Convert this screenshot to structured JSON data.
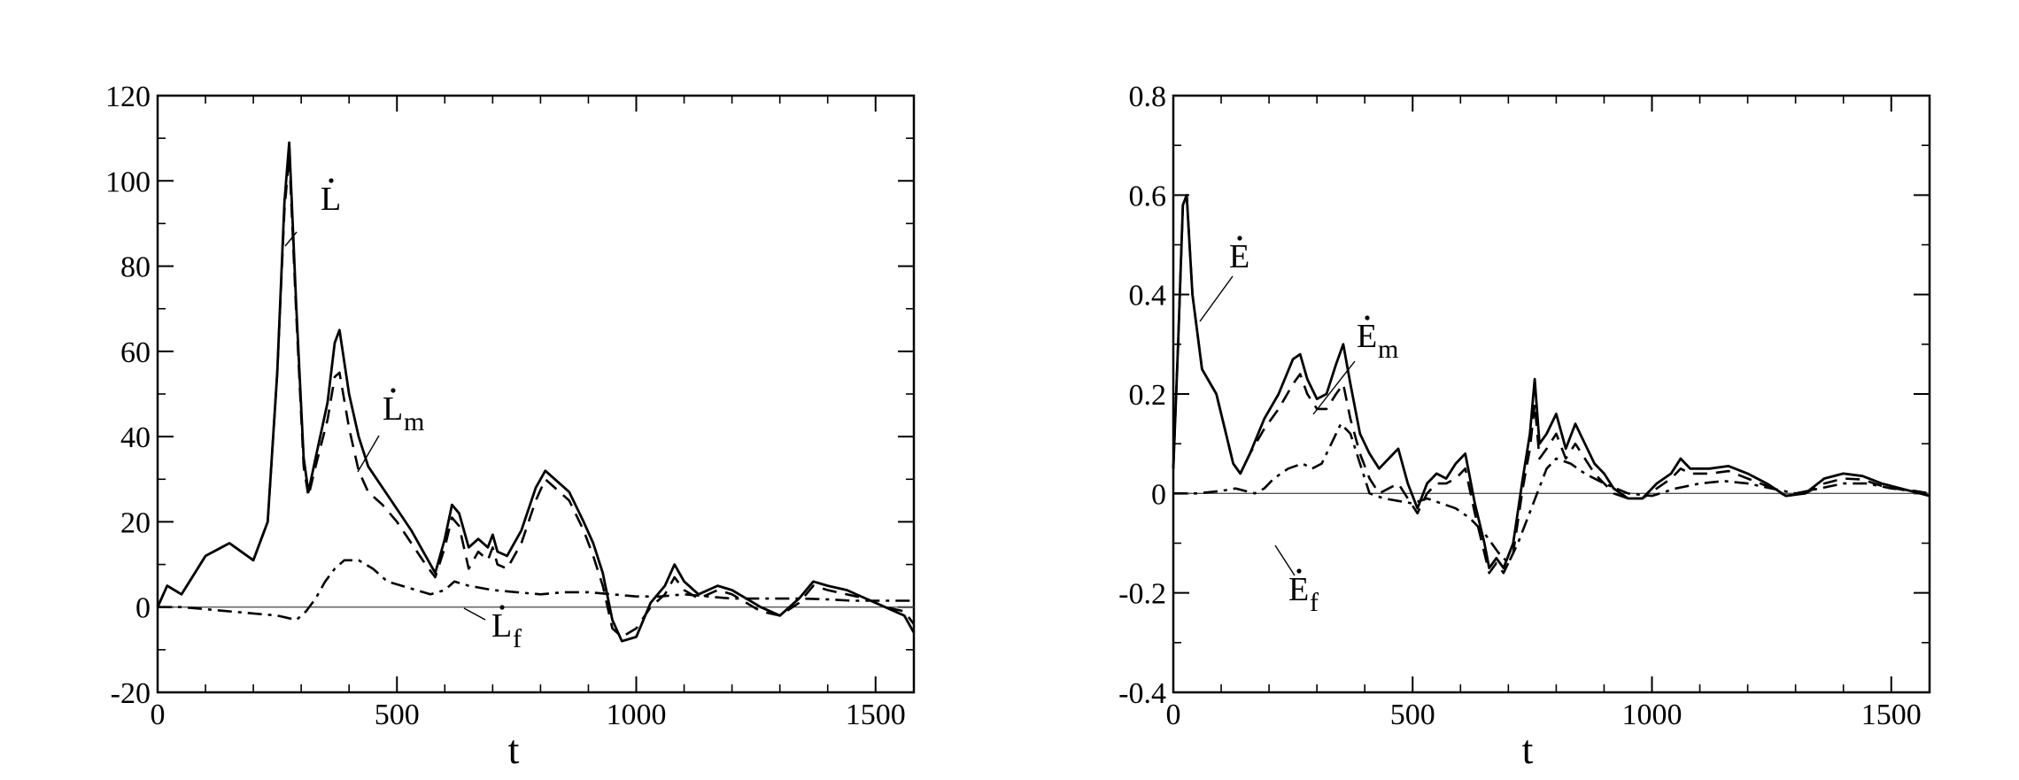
{
  "chart_data": [
    {
      "type": "line",
      "xlabel": "t",
      "ylabel": "",
      "xlim": [
        0,
        1580
      ],
      "ylim": [
        -20,
        120
      ],
      "xticks": [
        0,
        500,
        1000,
        1500
      ],
      "yticks": [
        -20,
        0,
        20,
        40,
        60,
        80,
        100,
        120
      ],
      "xtick_labels": [
        "0",
        "500",
        "1000",
        "1500"
      ],
      "ytick_labels": [
        "-20",
        "0",
        "20",
        "40",
        "60",
        "80",
        "100",
        "120"
      ],
      "grid": false,
      "series": [
        {
          "name": "L̇",
          "style": "solid",
          "x": [
            0,
            20,
            50,
            100,
            150,
            200,
            230,
            250,
            265,
            275,
            290,
            305,
            315,
            330,
            355,
            370,
            380,
            400,
            420,
            440,
            470,
            500,
            530,
            560,
            580,
            600,
            615,
            630,
            650,
            670,
            690,
            700,
            710,
            730,
            760,
            790,
            810,
            830,
            860,
            890,
            910,
            930,
            950,
            970,
            1000,
            1030,
            1060,
            1080,
            1100,
            1130,
            1170,
            1200,
            1230,
            1260,
            1300,
            1340,
            1370,
            1400,
            1440,
            1480,
            1520,
            1560,
            1580
          ],
          "y": [
            0,
            5,
            3,
            12,
            15,
            11,
            20,
            55,
            95,
            109,
            70,
            35,
            27,
            35,
            48,
            62,
            65,
            50,
            40,
            33,
            28,
            23,
            18,
            12,
            8,
            16,
            24,
            22,
            14,
            16,
            14,
            17,
            13,
            12,
            18,
            28,
            32,
            30,
            27,
            20,
            15,
            8,
            -3,
            -8,
            -7,
            1,
            5,
            10,
            6,
            3,
            5,
            4,
            2,
            0,
            -2,
            2,
            6,
            5,
            4,
            2,
            0,
            -2,
            -6
          ]
        },
        {
          "name": "L̇m",
          "style": "dashed",
          "x": [
            0,
            20,
            50,
            100,
            150,
            200,
            230,
            250,
            265,
            275,
            290,
            305,
            315,
            330,
            355,
            370,
            380,
            400,
            420,
            440,
            470,
            500,
            530,
            560,
            580,
            600,
            615,
            630,
            650,
            670,
            690,
            700,
            710,
            730,
            760,
            790,
            810,
            830,
            860,
            890,
            910,
            930,
            950,
            970,
            1000,
            1030,
            1060,
            1080,
            1100,
            1130,
            1170,
            1200,
            1230,
            1260,
            1300,
            1340,
            1370,
            1400,
            1440,
            1480,
            1520,
            1560,
            1580
          ],
          "y": [
            0,
            5,
            3,
            12,
            15,
            11,
            20,
            55,
            93,
            106,
            68,
            33,
            26,
            33,
            44,
            54,
            55,
            42,
            32,
            27,
            24,
            20,
            15,
            10,
            7,
            14,
            21,
            19,
            9,
            13,
            11,
            14,
            10,
            9,
            15,
            25,
            30,
            28,
            25,
            18,
            12,
            5,
            -5,
            -7,
            -5,
            0,
            3,
            7,
            4,
            2,
            4,
            3,
            1,
            -1,
            -2,
            1,
            5,
            4,
            3,
            2,
            0,
            -1,
            -4
          ]
        },
        {
          "name": "L̇f",
          "style": "dashdot",
          "x": [
            0,
            50,
            100,
            150,
            200,
            250,
            290,
            310,
            330,
            350,
            370,
            390,
            420,
            450,
            480,
            510,
            540,
            570,
            600,
            620,
            650,
            700,
            750,
            800,
            850,
            900,
            950,
            1000,
            1050,
            1100,
            1150,
            1200,
            1250,
            1300,
            1350,
            1400,
            1450,
            1500,
            1550,
            1580
          ],
          "y": [
            0,
            0,
            -0.5,
            -1,
            -1.5,
            -2,
            -3,
            -1,
            2,
            6,
            9,
            11,
            11,
            9,
            6,
            5,
            4,
            3,
            4,
            6,
            5,
            4,
            3.5,
            3,
            3.5,
            3.5,
            3,
            2.5,
            2.5,
            3,
            2.5,
            2,
            2,
            2,
            2,
            1.8,
            1.5,
            1.5,
            1.5,
            1.5
          ]
        }
      ],
      "annotations": [
        {
          "text": "L",
          "sub": "",
          "series": "L̇"
        },
        {
          "text": "L",
          "sub": "m",
          "series": "L̇m"
        },
        {
          "text": "L",
          "sub": "f",
          "series": "L̇f"
        }
      ],
      "reference_line": 0
    },
    {
      "type": "line",
      "xlabel": "t",
      "ylabel": "",
      "xlim": [
        0,
        1580
      ],
      "ylim": [
        -0.4,
        0.8
      ],
      "xticks": [
        0,
        500,
        1000,
        1500
      ],
      "yticks": [
        -0.4,
        -0.2,
        0,
        0.2,
        0.4,
        0.6,
        0.8
      ],
      "xtick_labels": [
        "0",
        "500",
        "1000",
        "1500"
      ],
      "ytick_labels": [
        "-0.4",
        "-0.2",
        "0",
        "0.2",
        "0.4",
        "0.6",
        "0.8"
      ],
      "grid": false,
      "series": [
        {
          "name": "Ė",
          "style": "solid",
          "x": [
            0,
            10,
            20,
            28,
            40,
            60,
            90,
            110,
            125,
            140,
            160,
            190,
            220,
            250,
            265,
            280,
            300,
            320,
            340,
            355,
            370,
            390,
            410,
            430,
            450,
            470,
            490,
            510,
            530,
            550,
            570,
            590,
            610,
            630,
            650,
            660,
            675,
            690,
            710,
            730,
            745,
            755,
            765,
            780,
            800,
            820,
            840,
            860,
            880,
            900,
            920,
            950,
            980,
            1010,
            1040,
            1060,
            1080,
            1120,
            1160,
            1200,
            1240,
            1280,
            1320,
            1360,
            1400,
            1440,
            1480,
            1520,
            1560,
            1580
          ],
          "y": [
            0.05,
            0.3,
            0.58,
            0.6,
            0.4,
            0.25,
            0.2,
            0.12,
            0.06,
            0.04,
            0.08,
            0.15,
            0.2,
            0.27,
            0.28,
            0.23,
            0.19,
            0.2,
            0.26,
            0.3,
            0.22,
            0.12,
            0.08,
            0.05,
            0.07,
            0.09,
            0.02,
            -0.03,
            0.02,
            0.04,
            0.03,
            0.06,
            0.08,
            -0.02,
            -0.1,
            -0.15,
            -0.13,
            -0.15,
            -0.1,
            0.03,
            0.12,
            0.23,
            0.1,
            0.12,
            0.16,
            0.09,
            0.14,
            0.1,
            0.06,
            0.04,
            0.01,
            -0.01,
            -0.01,
            0.02,
            0.04,
            0.07,
            0.05,
            0.05,
            0.055,
            0.04,
            0.02,
            -0.005,
            0.0,
            0.03,
            0.04,
            0.035,
            0.02,
            0.01,
            0.0,
            -0.005
          ]
        },
        {
          "name": "Ėm",
          "style": "dashed",
          "x": [
            0,
            10,
            20,
            28,
            40,
            60,
            90,
            110,
            125,
            140,
            160,
            190,
            220,
            250,
            265,
            280,
            300,
            320,
            340,
            355,
            370,
            390,
            410,
            430,
            450,
            470,
            490,
            510,
            530,
            550,
            570,
            590,
            610,
            630,
            650,
            660,
            675,
            690,
            710,
            730,
            745,
            755,
            765,
            780,
            800,
            820,
            840,
            860,
            880,
            900,
            920,
            950,
            980,
            1010,
            1040,
            1060,
            1080,
            1120,
            1160,
            1200,
            1240,
            1280,
            1320,
            1360,
            1400,
            1440,
            1480,
            1520,
            1560,
            1580
          ],
          "y": [
            0.05,
            0.3,
            0.58,
            0.6,
            0.4,
            0.25,
            0.2,
            0.12,
            0.06,
            0.04,
            0.08,
            0.13,
            0.17,
            0.22,
            0.24,
            0.2,
            0.17,
            0.17,
            0.2,
            0.22,
            0.15,
            0.08,
            0.03,
            0.0,
            0.01,
            0.02,
            -0.01,
            -0.04,
            0.0,
            0.02,
            0.02,
            0.03,
            0.05,
            -0.04,
            -0.12,
            -0.16,
            -0.14,
            -0.16,
            -0.12,
            0.01,
            0.09,
            0.18,
            0.07,
            0.09,
            0.12,
            0.07,
            0.1,
            0.07,
            0.04,
            0.02,
            0.0,
            -0.01,
            -0.01,
            0.01,
            0.03,
            0.05,
            0.04,
            0.04,
            0.045,
            0.03,
            0.015,
            -0.005,
            0.0,
            0.02,
            0.03,
            0.028,
            0.015,
            0.008,
            0.0,
            -0.005
          ]
        },
        {
          "name": "Ėf",
          "style": "dashdot",
          "x": [
            0,
            50,
            100,
            130,
            150,
            170,
            190,
            210,
            240,
            270,
            290,
            310,
            330,
            350,
            370,
            390,
            410,
            440,
            470,
            500,
            530,
            560,
            590,
            620,
            650,
            680,
            700,
            720,
            740,
            760,
            780,
            800,
            830,
            860,
            900,
            950,
            1000,
            1050,
            1100,
            1150,
            1200,
            1250,
            1300,
            1350,
            1400,
            1450,
            1500,
            1550,
            1580
          ],
          "y": [
            0,
            0,
            0.005,
            0.01,
            0.005,
            0.0,
            0.01,
            0.03,
            0.05,
            0.06,
            0.05,
            0.06,
            0.1,
            0.14,
            0.12,
            0.06,
            0.0,
            -0.01,
            -0.015,
            -0.02,
            -0.01,
            -0.02,
            -0.03,
            -0.05,
            -0.08,
            -0.12,
            -0.14,
            -0.1,
            -0.05,
            0.0,
            0.05,
            0.07,
            0.06,
            0.04,
            0.02,
            0.0,
            -0.005,
            0.01,
            0.02,
            0.025,
            0.02,
            0.01,
            0.0,
            0.01,
            0.02,
            0.02,
            0.01,
            0.005,
            0.0
          ]
        }
      ],
      "annotations": [
        {
          "text": "E",
          "sub": "",
          "series": "Ė"
        },
        {
          "text": "E",
          "sub": "m",
          "series": "Ėm"
        },
        {
          "text": "E",
          "sub": "f",
          "series": "Ėf"
        }
      ],
      "reference_line": 0
    }
  ]
}
